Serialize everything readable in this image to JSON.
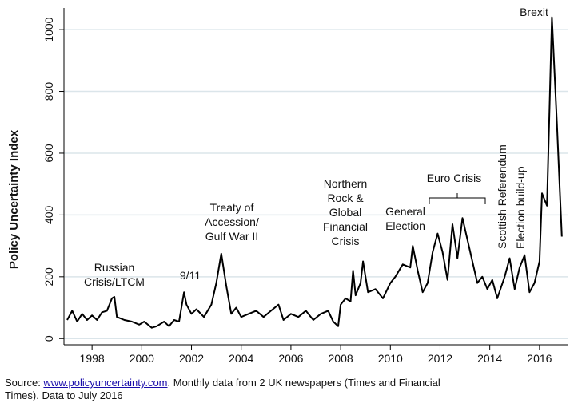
{
  "chart_data": {
    "type": "line",
    "y_label": "Policy Uncertainty Index",
    "x": [
      1997.0,
      1997.2,
      1997.4,
      1997.6,
      1997.8,
      1998.0,
      1998.2,
      1998.4,
      1998.6,
      1998.8,
      1998.9,
      1999.0,
      1999.3,
      1999.6,
      1999.9,
      2000.1,
      2000.4,
      2000.6,
      2000.9,
      2001.1,
      2001.3,
      2001.5,
      2001.7,
      2001.8,
      2002.0,
      2002.2,
      2002.5,
      2002.8,
      2003.0,
      2003.2,
      2003.4,
      2003.6,
      2003.8,
      2004.0,
      2004.3,
      2004.6,
      2004.9,
      2005.2,
      2005.5,
      2005.7,
      2006.0,
      2006.3,
      2006.6,
      2006.9,
      2007.2,
      2007.5,
      2007.7,
      2007.9,
      2008.0,
      2008.2,
      2008.4,
      2008.5,
      2008.6,
      2008.8,
      2008.9,
      2009.1,
      2009.4,
      2009.7,
      2010.0,
      2010.2,
      2010.5,
      2010.8,
      2010.9,
      2011.1,
      2011.3,
      2011.5,
      2011.7,
      2011.9,
      2012.1,
      2012.3,
      2012.5,
      2012.7,
      2012.9,
      2013.1,
      2013.3,
      2013.5,
      2013.7,
      2013.9,
      2014.1,
      2014.3,
      2014.6,
      2014.8,
      2015.0,
      2015.2,
      2015.4,
      2015.6,
      2015.8,
      2016.0,
      2016.1,
      2016.3,
      2016.5,
      2016.7,
      2016.9
    ],
    "values": [
      60,
      90,
      55,
      80,
      60,
      75,
      60,
      85,
      90,
      130,
      135,
      70,
      60,
      55,
      45,
      55,
      35,
      40,
      55,
      40,
      60,
      55,
      150,
      110,
      80,
      95,
      70,
      110,
      180,
      275,
      170,
      80,
      100,
      70,
      80,
      90,
      70,
      90,
      110,
      60,
      80,
      70,
      90,
      60,
      80,
      90,
      55,
      40,
      110,
      130,
      120,
      220,
      140,
      180,
      250,
      150,
      160,
      130,
      180,
      200,
      240,
      230,
      300,
      220,
      150,
      180,
      280,
      340,
      280,
      190,
      370,
      260,
      390,
      320,
      250,
      180,
      200,
      160,
      190,
      130,
      200,
      260,
      160,
      230,
      270,
      150,
      180,
      250,
      470,
      430,
      1040,
      700,
      330
    ],
    "color": "#000000",
    "xlim": [
      1996.87,
      2017.13
    ],
    "xticks": [
      1998,
      2000,
      2002,
      2004,
      2006,
      2008,
      2010,
      2012,
      2014,
      2016
    ],
    "ylim": [
      -20,
      1070
    ],
    "yticks": [
      0,
      200,
      400,
      600,
      800,
      1000
    ],
    "grid": true,
    "annotations": [
      {
        "lines": [
          "Russian",
          "Crisis/LTCM"
        ]
      },
      {
        "lines": [
          "9/11"
        ]
      },
      {
        "lines": [
          "Treaty of",
          "Accession/",
          "Gulf War II"
        ]
      },
      {
        "lines": [
          "Northern",
          "Rock &",
          "Global",
          "Financial",
          "Crisis"
        ]
      },
      {
        "lines": [
          "General",
          "Election"
        ]
      },
      {
        "lines": [
          "Euro Crisis"
        ]
      },
      {
        "lines": [
          "Scottish Referendum"
        ]
      },
      {
        "lines": [
          "Election build-up"
        ]
      },
      {
        "lines": [
          "Brexit"
        ]
      }
    ]
  },
  "source": {
    "prefix": "Source: ",
    "link": "www.policyuncertainty.com",
    "line1": ". Monthly data from 2 UK newspapers (Times and Financial",
    "line2": "Times). Data to July 2016"
  }
}
